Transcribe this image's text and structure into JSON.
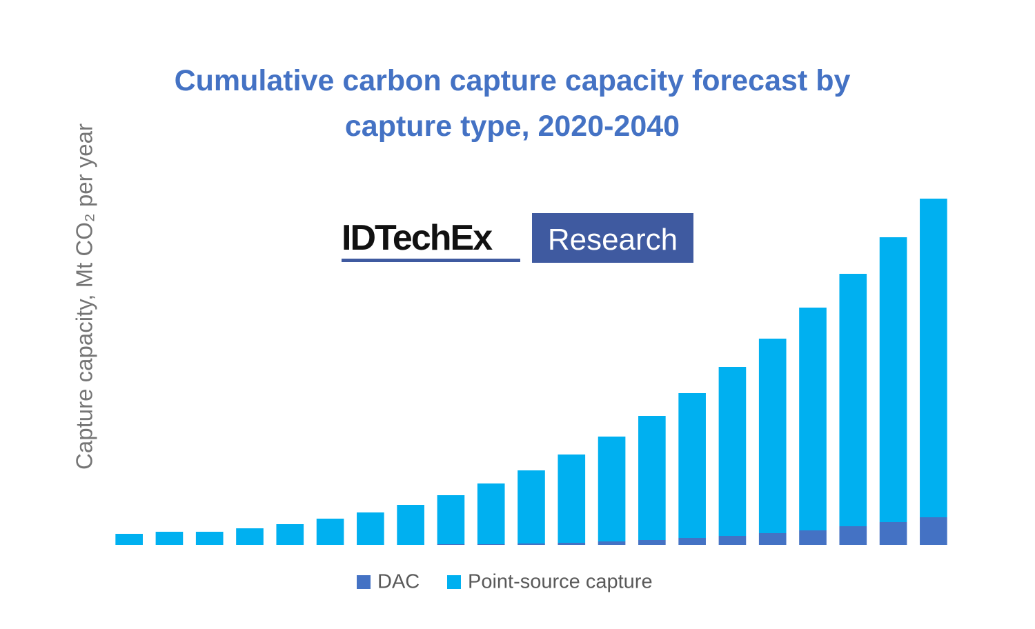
{
  "chart_data": {
    "type": "stacked_bar",
    "title": "Cumulative carbon capture capacity forecast by capture type, 2020-2040",
    "y_label": "Capture capacity, Mt CO₂ per year",
    "logo": {
      "brand": "IDTechEx",
      "tag": "Research"
    },
    "categories": [
      null,
      null,
      null,
      null,
      null,
      null,
      null,
      null,
      null,
      null,
      null,
      null,
      null,
      null,
      null,
      null,
      null,
      null,
      null,
      null,
      null
    ],
    "series": [
      {
        "name": "DAC",
        "color": "#4472c4",
        "values": [
          0,
          0,
          0,
          0,
          0,
          0,
          0,
          0,
          1,
          1,
          2,
          3,
          5,
          7,
          10,
          13,
          17,
          21,
          27,
          33,
          40
        ]
      },
      {
        "name": "Point-source capture",
        "color": "#00b0f0",
        "values": [
          16,
          19,
          19,
          24,
          30,
          38,
          47,
          58,
          71,
          88,
          106,
          128,
          152,
          180,
          210,
          245,
          282,
          323,
          366,
          413,
          462
        ]
      }
    ],
    "ylim": [
      0,
      520
    ]
  }
}
